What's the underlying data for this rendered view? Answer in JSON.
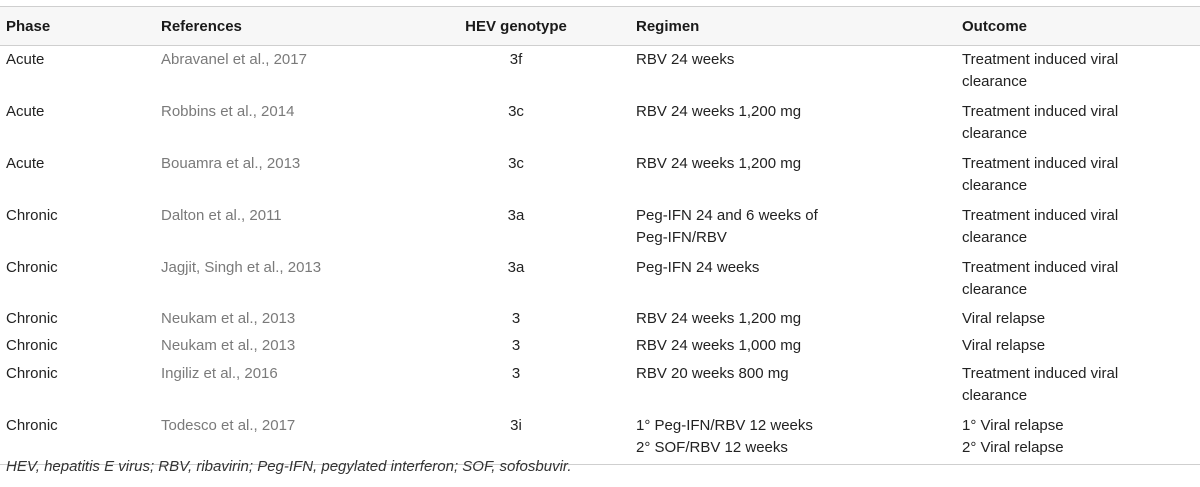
{
  "table": {
    "headers": {
      "phase": "Phase",
      "references": "References",
      "genotype": "HEV genotype",
      "regimen": "Regimen",
      "outcome": "Outcome"
    },
    "rows": [
      {
        "phase": "Acute",
        "reference": "Abravanel et al., 2017",
        "genotype": "3f",
        "regimen": [
          "RBV 24 weeks"
        ],
        "outcome": [
          "Treatment induced viral",
          "clearance"
        ]
      },
      {
        "phase": "Acute",
        "reference": "Robbins et al., 2014",
        "genotype": "3c",
        "regimen": [
          "RBV 24 weeks 1,200 mg"
        ],
        "outcome": [
          "Treatment induced viral",
          "clearance"
        ]
      },
      {
        "phase": "Acute",
        "reference": "Bouamra et al., 2013",
        "genotype": "3c",
        "regimen": [
          "RBV 24 weeks 1,200 mg"
        ],
        "outcome": [
          "Treatment induced viral",
          "clearance"
        ]
      },
      {
        "phase": "Chronic",
        "reference": "Dalton et al., 2011",
        "genotype": "3a",
        "regimen": [
          "Peg-IFN 24 and 6 weeks of",
          "Peg-IFN/RBV"
        ],
        "outcome": [
          "Treatment induced viral",
          "clearance"
        ]
      },
      {
        "phase": "Chronic",
        "reference": "Jagjit, Singh et al., 2013",
        "genotype": "3a",
        "regimen": [
          "Peg-IFN 24 weeks"
        ],
        "outcome": [
          "Treatment induced viral",
          "clearance"
        ]
      },
      {
        "phase": "Chronic",
        "reference": "Neukam et al., 2013",
        "genotype": "3",
        "regimen": [
          "RBV 24 weeks 1,200 mg"
        ],
        "outcome": [
          "Viral relapse"
        ]
      },
      {
        "phase": "Chronic",
        "reference": "Neukam et al., 2013",
        "genotype": "3",
        "regimen": [
          "RBV 24 weeks 1,000 mg"
        ],
        "outcome": [
          "Viral relapse"
        ]
      },
      {
        "phase": "Chronic",
        "reference": "Ingiliz et al., 2016",
        "genotype": "3",
        "regimen": [
          "RBV 20 weeks 800 mg"
        ],
        "outcome": [
          "Treatment induced viral",
          "clearance"
        ]
      },
      {
        "phase": "Chronic",
        "reference": "Todesco et al., 2017",
        "genotype": "3i",
        "regimen": [
          "1° Peg-IFN/RBV 12 weeks",
          "2° SOF/RBV 12 weeks"
        ],
        "outcome": [
          "1° Viral relapse",
          "2° Viral relapse"
        ]
      }
    ]
  },
  "footnote": "HEV, hepatitis E virus; RBV, ribavirin; Peg-IFN, pegylated interferon; SOF, sofosbuvir."
}
